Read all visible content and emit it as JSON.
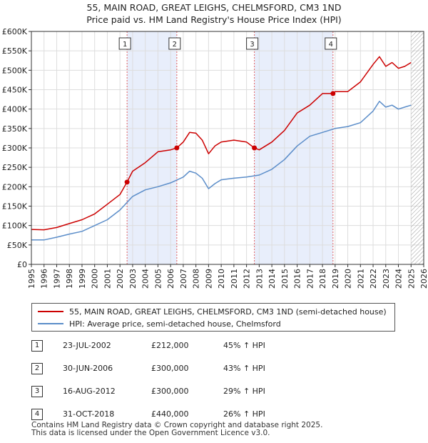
{
  "title_line1": "55, MAIN ROAD, GREAT LEIGHS, CHELMSFORD, CM3 1ND",
  "title_line2": "Price paid vs. HM Land Registry's House Price Index (HPI)",
  "colors": {
    "property": "#cc0000",
    "hpi": "#5b8dc9",
    "band": "#e8eefb",
    "grid": "#dddddd",
    "marker": "#cc0000"
  },
  "chart_data": {
    "type": "line",
    "x_range": [
      1995,
      2026
    ],
    "ylim": [
      0,
      600000
    ],
    "y_ticks": [
      {
        "value": 0,
        "label": "£0"
      },
      {
        "value": 50000,
        "label": "£50K"
      },
      {
        "value": 100000,
        "label": "£100K"
      },
      {
        "value": 150000,
        "label": "£150K"
      },
      {
        "value": 200000,
        "label": "£200K"
      },
      {
        "value": 250000,
        "label": "£250K"
      },
      {
        "value": 300000,
        "label": "£300K"
      },
      {
        "value": 350000,
        "label": "£350K"
      },
      {
        "value": 400000,
        "label": "£400K"
      },
      {
        "value": 450000,
        "label": "£450K"
      },
      {
        "value": 500000,
        "label": "£500K"
      },
      {
        "value": 550000,
        "label": "£550K"
      },
      {
        "value": 600000,
        "label": "£600K"
      }
    ],
    "x_ticks": [
      "1995",
      "1996",
      "1997",
      "1998",
      "1999",
      "2000",
      "2001",
      "2002",
      "2003",
      "2004",
      "2005",
      "2006",
      "2007",
      "2008",
      "2009",
      "2010",
      "2011",
      "2012",
      "2013",
      "2014",
      "2015",
      "2016",
      "2017",
      "2018",
      "2019",
      "2020",
      "2021",
      "2022",
      "2023",
      "2024",
      "2025",
      "2026"
    ],
    "shaded_bands": [
      [
        2002.56,
        2006.49
      ],
      [
        2012.62,
        2018.83
      ]
    ],
    "hatched_from": 2025.0,
    "series": [
      {
        "name": "55, MAIN ROAD, GREAT LEIGHS, CHELMSFORD, CM3 1ND (semi-detached house)",
        "color": "#cc0000",
        "points": [
          [
            1995,
            90000
          ],
          [
            1996,
            89000
          ],
          [
            1997,
            95000
          ],
          [
            1998,
            105000
          ],
          [
            1999,
            115000
          ],
          [
            2000,
            130000
          ],
          [
            2001,
            155000
          ],
          [
            2002,
            180000
          ],
          [
            2002.56,
            212000
          ],
          [
            2003,
            240000
          ],
          [
            2004,
            262000
          ],
          [
            2005,
            290000
          ],
          [
            2006,
            295000
          ],
          [
            2006.49,
            300000
          ],
          [
            2007,
            315000
          ],
          [
            2007.5,
            340000
          ],
          [
            2008,
            338000
          ],
          [
            2008.5,
            320000
          ],
          [
            2009,
            285000
          ],
          [
            2009.5,
            305000
          ],
          [
            2010,
            315000
          ],
          [
            2011,
            320000
          ],
          [
            2012,
            315000
          ],
          [
            2012.62,
            300000
          ],
          [
            2013,
            295000
          ],
          [
            2014,
            315000
          ],
          [
            2015,
            345000
          ],
          [
            2016,
            390000
          ],
          [
            2017,
            410000
          ],
          [
            2018,
            440000
          ],
          [
            2018.83,
            440000
          ],
          [
            2019,
            445000
          ],
          [
            2020,
            445000
          ],
          [
            2021,
            470000
          ],
          [
            2022,
            515000
          ],
          [
            2022.5,
            535000
          ],
          [
            2023,
            510000
          ],
          [
            2023.5,
            520000
          ],
          [
            2024,
            505000
          ],
          [
            2024.5,
            510000
          ],
          [
            2025,
            520000
          ]
        ]
      },
      {
        "name": "HPI: Average price, semi-detached house, Chelmsford",
        "color": "#5b8dc9",
        "points": [
          [
            1995,
            63000
          ],
          [
            1996,
            63000
          ],
          [
            1997,
            70000
          ],
          [
            1998,
            78000
          ],
          [
            1999,
            85000
          ],
          [
            2000,
            100000
          ],
          [
            2001,
            115000
          ],
          [
            2002,
            140000
          ],
          [
            2003,
            175000
          ],
          [
            2004,
            192000
          ],
          [
            2005,
            200000
          ],
          [
            2006,
            210000
          ],
          [
            2007,
            225000
          ],
          [
            2007.5,
            240000
          ],
          [
            2008,
            235000
          ],
          [
            2008.5,
            222000
          ],
          [
            2009,
            195000
          ],
          [
            2009.5,
            208000
          ],
          [
            2010,
            218000
          ],
          [
            2011,
            222000
          ],
          [
            2012,
            225000
          ],
          [
            2013,
            230000
          ],
          [
            2014,
            245000
          ],
          [
            2015,
            270000
          ],
          [
            2016,
            305000
          ],
          [
            2017,
            330000
          ],
          [
            2018,
            340000
          ],
          [
            2019,
            350000
          ],
          [
            2020,
            355000
          ],
          [
            2021,
            365000
          ],
          [
            2022,
            395000
          ],
          [
            2022.5,
            420000
          ],
          [
            2023,
            405000
          ],
          [
            2023.5,
            410000
          ],
          [
            2024,
            400000
          ],
          [
            2024.5,
            405000
          ],
          [
            2025,
            410000
          ]
        ]
      }
    ],
    "sales": [
      {
        "label": "1",
        "x": 2002.56,
        "y": 212000
      },
      {
        "label": "2",
        "x": 2006.49,
        "y": 300000
      },
      {
        "label": "3",
        "x": 2012.62,
        "y": 300000
      },
      {
        "label": "4",
        "x": 2018.83,
        "y": 440000
      }
    ]
  },
  "legend": {
    "property_label": "55, MAIN ROAD, GREAT LEIGHS, CHELMSFORD, CM3 1ND (semi-detached house)",
    "hpi_label": "HPI: Average price, semi-detached house, Chelmsford"
  },
  "sales_table": [
    {
      "num": "1",
      "date": "23-JUL-2002",
      "price": "£212,000",
      "hpi": "45% ↑ HPI"
    },
    {
      "num": "2",
      "date": "30-JUN-2006",
      "price": "£300,000",
      "hpi": "43% ↑ HPI"
    },
    {
      "num": "3",
      "date": "16-AUG-2012",
      "price": "£300,000",
      "hpi": "29% ↑ HPI"
    },
    {
      "num": "4",
      "date": "31-OCT-2018",
      "price": "£440,000",
      "hpi": "26% ↑ HPI"
    }
  ],
  "footer": {
    "line1": "Contains HM Land Registry data © Crown copyright and database right 2025.",
    "line2": "This data is licensed under the Open Government Licence v3.0."
  }
}
